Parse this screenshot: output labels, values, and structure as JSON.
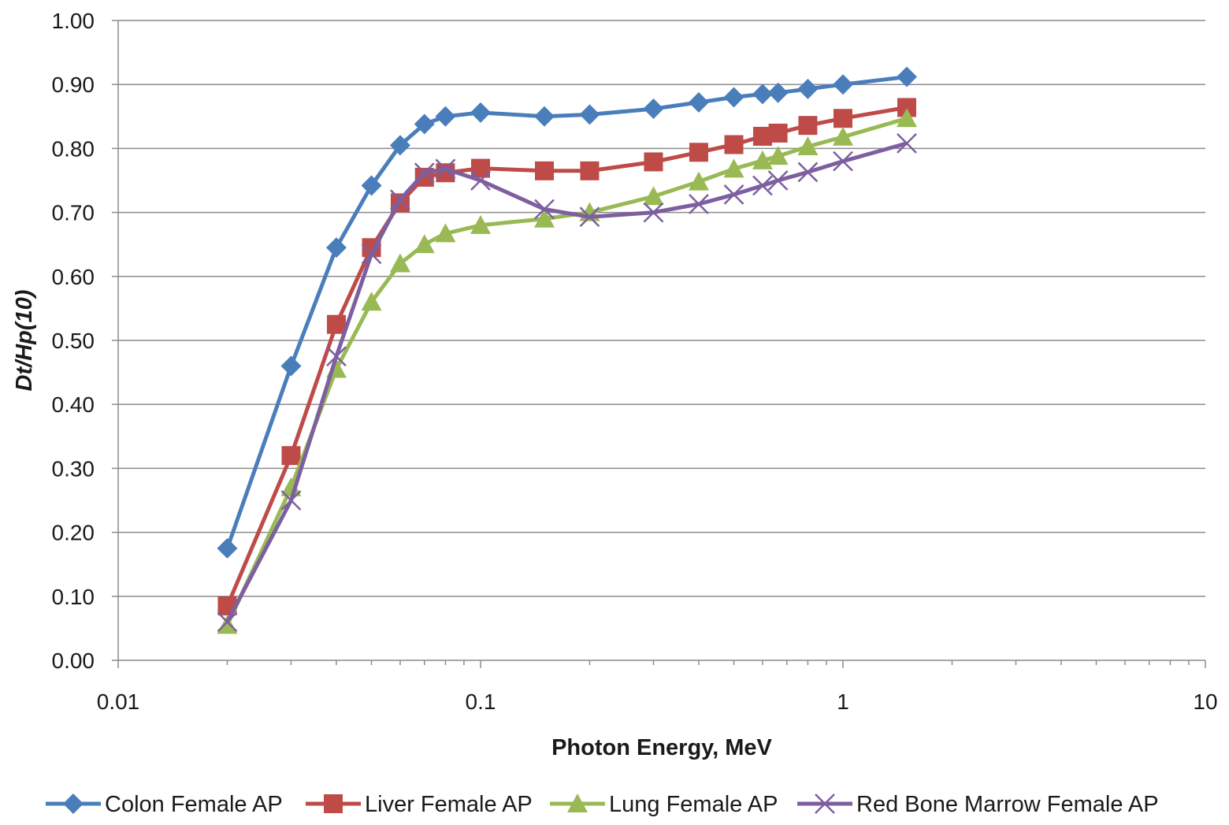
{
  "chart_data": {
    "type": "line",
    "title": "",
    "xlabel": "Photon Energy, MeV",
    "ylabel": "Dt/Hp(10)",
    "x_scale": "log",
    "xlim": [
      0.01,
      10
    ],
    "ylim": [
      0,
      1
    ],
    "x_ticks": [
      0.01,
      0.1,
      1,
      10
    ],
    "x_tick_labels": [
      "0.01",
      "0.1",
      "1",
      "10"
    ],
    "y_ticks": [
      0,
      0.1,
      0.2,
      0.3,
      0.4,
      0.5,
      0.6,
      0.7,
      0.8,
      0.9,
      1.0
    ],
    "y_tick_labels": [
      "0.00",
      "0.10",
      "0.20",
      "0.30",
      "0.40",
      "0.50",
      "0.60",
      "0.70",
      "0.80",
      "0.90",
      "1.00"
    ],
    "grid": "horizontal",
    "legend_position": "bottom",
    "x": [
      0.02,
      0.03,
      0.04,
      0.05,
      0.06,
      0.07,
      0.08,
      0.1,
      0.15,
      0.2,
      0.3,
      0.4,
      0.5,
      0.6,
      0.662,
      0.8,
      1.0,
      1.5
    ],
    "series": [
      {
        "name": "Colon Female AP",
        "color": "#4a7ebb",
        "marker": "diamond",
        "values": [
          0.175,
          0.46,
          0.645,
          0.742,
          0.805,
          0.838,
          0.85,
          0.856,
          0.85,
          0.853,
          0.862,
          0.872,
          0.88,
          0.885,
          0.887,
          0.893,
          0.9,
          0.912
        ]
      },
      {
        "name": "Liver Female AP",
        "color": "#be4b48",
        "marker": "square",
        "values": [
          0.085,
          0.32,
          0.525,
          0.645,
          0.715,
          0.755,
          0.762,
          0.769,
          0.765,
          0.765,
          0.779,
          0.794,
          0.806,
          0.819,
          0.824,
          0.836,
          0.847,
          0.864
        ]
      },
      {
        "name": "Lung Female AP",
        "color": "#98b954",
        "marker": "triangle",
        "values": [
          0.055,
          0.27,
          0.455,
          0.56,
          0.62,
          0.65,
          0.667,
          0.68,
          0.69,
          0.7,
          0.725,
          0.748,
          0.768,
          0.781,
          0.788,
          0.803,
          0.818,
          0.847
        ]
      },
      {
        "name": "Red Bone Marrow Female AP",
        "color": "#7d5fa0",
        "marker": "x",
        "values": [
          0.06,
          0.25,
          0.475,
          0.635,
          0.72,
          0.762,
          0.768,
          0.75,
          0.705,
          0.693,
          0.7,
          0.713,
          0.728,
          0.742,
          0.75,
          0.763,
          0.78,
          0.808
        ]
      }
    ]
  }
}
